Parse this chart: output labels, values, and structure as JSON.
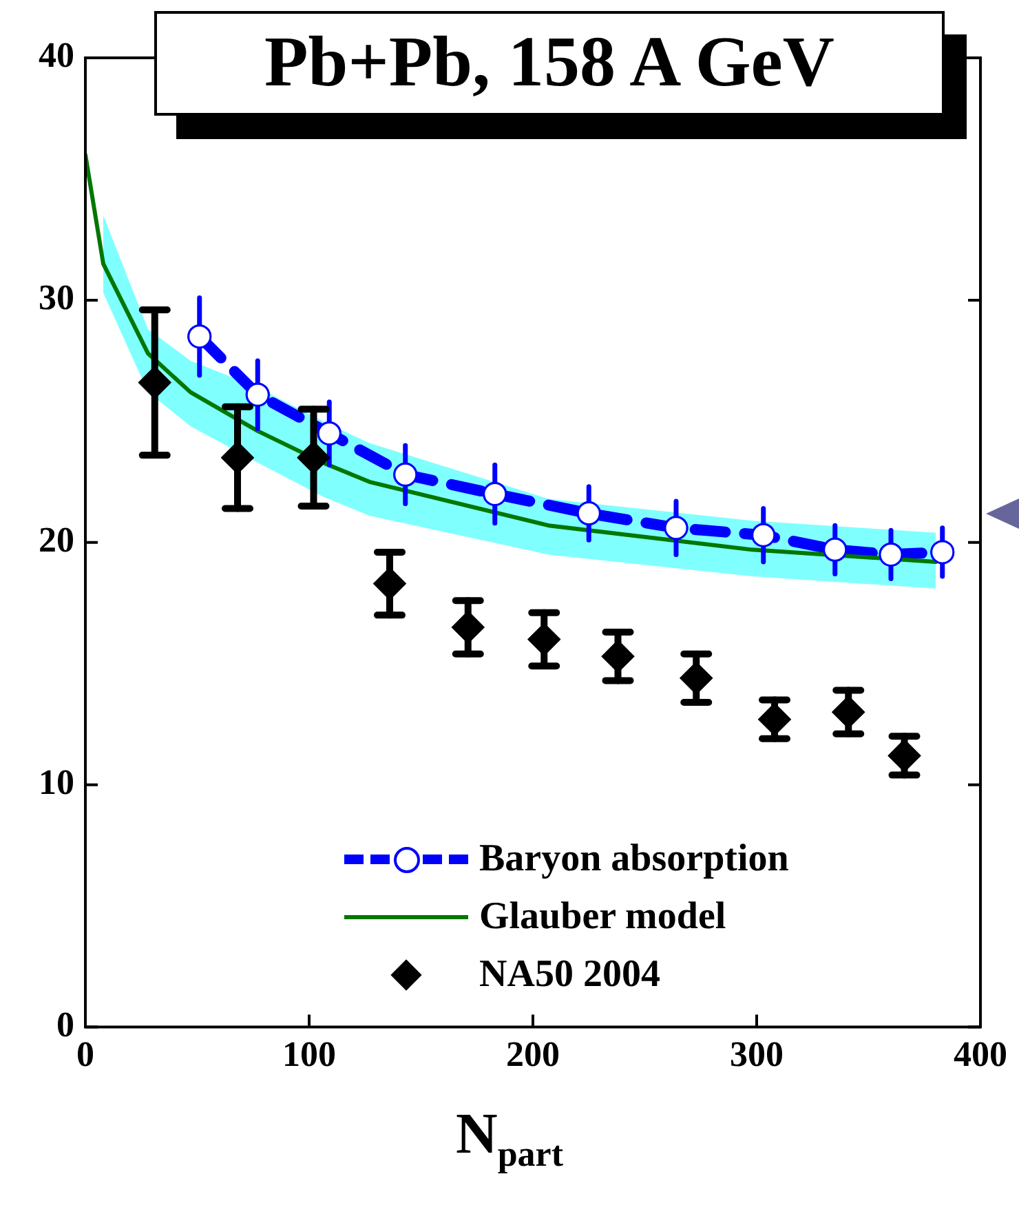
{
  "chart_data": {
    "type": "line",
    "title": "Pb+Pb, 158 A GeV",
    "xlabel": "N$_{part}$",
    "xlim": [
      0,
      400
    ],
    "xticks": [
      0,
      100,
      200,
      300,
      400
    ],
    "ylim": [
      0,
      40
    ],
    "yticks": [
      0,
      10,
      20,
      30,
      40
    ],
    "grid": false,
    "legend": "bottom right",
    "series": [
      {
        "name": "Baryon absorption",
        "color": "#0000ff",
        "line_style": "dashed",
        "marker": "circle",
        "x": [
          51,
          77,
          109,
          143,
          183,
          225,
          264,
          303,
          335,
          360,
          383
        ],
        "values": [
          28.5,
          26.1,
          24.5,
          22.8,
          22.0,
          21.2,
          20.6,
          20.3,
          19.7,
          19.5,
          19.6
        ],
        "errors": [
          1.6,
          1.4,
          1.3,
          1.2,
          1.2,
          1.1,
          1.1,
          1.1,
          1.0,
          1.0,
          1.0
        ]
      },
      {
        "name": "Glauber model",
        "color": "#007700",
        "line_style": "solid",
        "marker": "none",
        "x": [
          0,
          8,
          28,
          47,
          77,
          106,
          127,
          207,
          298,
          380
        ],
        "values": [
          36,
          31.5,
          27.8,
          26.2,
          24.6,
          23.3,
          22.5,
          20.7,
          19.7,
          19.2
        ],
        "lower": [
          null,
          30.3,
          26.2,
          24.8,
          23.3,
          21.9,
          21.1,
          19.5,
          18.6,
          18.1
        ],
        "upper": [
          null,
          33.5,
          28.8,
          27.5,
          26.4,
          25.0,
          24.1,
          21.8,
          20.9,
          20.4
        ]
      },
      {
        "name": "NA50 2004",
        "type": "scatter",
        "color": "#000000",
        "marker": "diamond",
        "x": [
          31,
          68,
          102,
          136,
          171,
          205,
          238,
          273,
          308,
          341,
          366
        ],
        "values": [
          26.6,
          23.5,
          23.5,
          18.3,
          16.5,
          16.0,
          15.3,
          14.4,
          12.7,
          13.0,
          11.2
        ],
        "errors": [
          3.0,
          2.1,
          2.0,
          1.3,
          1.1,
          1.1,
          1.0,
          1.0,
          0.8,
          0.9,
          0.8
        ]
      }
    ]
  }
}
